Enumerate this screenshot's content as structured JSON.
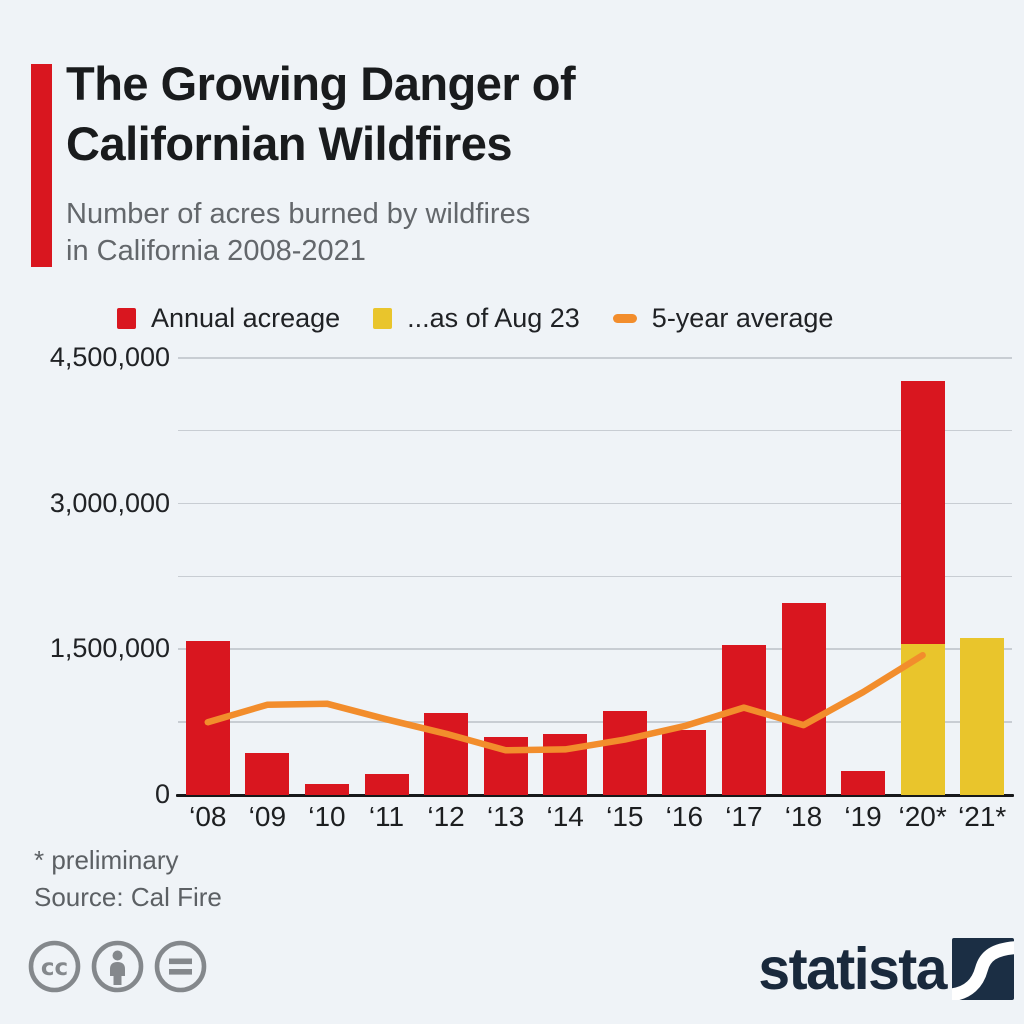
{
  "header": {
    "title_line1": "The Growing Danger of",
    "title_line2": "Californian Wildfires",
    "subtitle_line1": "Number of acres burned by wildfires",
    "subtitle_line2": "in California 2008-2021"
  },
  "legend": [
    {
      "label": "Annual acreage",
      "color": "#d9161f",
      "swatch": "square"
    },
    {
      "label": "...as of Aug 23",
      "color": "#e9c52c",
      "swatch": "square"
    },
    {
      "label": "5-year average",
      "color": "#f28d2c",
      "swatch": "dash"
    }
  ],
  "chart_data": {
    "type": "bar",
    "title": "Number of acres burned by wildfires in California 2008-2021",
    "unit": "acres",
    "categories": [
      "‘08",
      "‘09",
      "‘10",
      "‘11",
      "‘12",
      "‘13",
      "‘14",
      "‘15",
      "‘16",
      "‘17",
      "‘18",
      "‘19",
      "‘20*",
      "‘21*"
    ],
    "series": [
      {
        "name": "Annual acreage",
        "type": "bar",
        "color": "#d9161f",
        "values": [
          1590000,
          430000,
          110000,
          220000,
          840000,
          600000,
          630000,
          870000,
          670000,
          1540000,
          1980000,
          250000,
          4260000,
          null
        ]
      },
      {
        "name": "...as of Aug 23",
        "type": "bar-overlay",
        "color": "#e9c52c",
        "values": [
          null,
          null,
          null,
          null,
          null,
          null,
          null,
          null,
          null,
          null,
          null,
          null,
          1550000,
          1620000
        ]
      },
      {
        "name": "5-year average",
        "type": "line",
        "color": "#f28d2c",
        "values": [
          750000,
          930000,
          940000,
          780000,
          630000,
          460000,
          470000,
          570000,
          710000,
          900000,
          720000,
          1060000,
          1440000,
          null
        ]
      }
    ],
    "xlabel": "",
    "ylabel": "",
    "ylim": [
      0,
      4500000
    ],
    "yticks_labeled": [
      0,
      1500000,
      3000000,
      4500000
    ],
    "gridline_step": 750000,
    "grid": true,
    "legend_position": "top"
  },
  "footnotes": {
    "line1": "* preliminary",
    "line2": "Source: Cal Fire"
  },
  "license_icons": [
    "cc-icon",
    "attribution-person-icon",
    "equals-icon"
  ],
  "branding": {
    "wordmark": "statista"
  }
}
